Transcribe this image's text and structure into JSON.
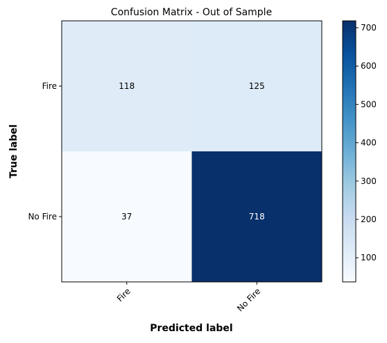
{
  "chart_data": {
    "type": "heatmap",
    "title": "Confusion Matrix - Out of Sample",
    "xlabel": "Predicted label",
    "ylabel": "True label",
    "x_categories": [
      "Fire",
      "No Fire"
    ],
    "y_categories": [
      "Fire",
      "No Fire"
    ],
    "values": [
      [
        118,
        125
      ],
      [
        37,
        718
      ]
    ],
    "colormap": "Blues",
    "color_range": [
      37,
      718
    ],
    "colorbar": {
      "ticks": [
        100,
        200,
        300,
        400,
        500,
        600,
        700
      ],
      "tick_labels": [
        "100",
        "200",
        "300",
        "400",
        "500",
        "600",
        "700"
      ]
    },
    "cell_text_color": {
      "light": "#000000",
      "dark": "#ffffff"
    }
  }
}
